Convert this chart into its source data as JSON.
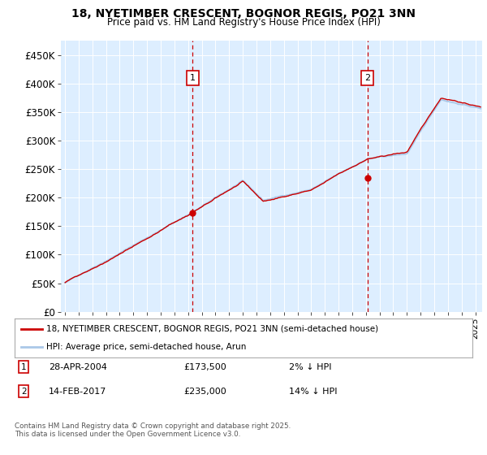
{
  "title_line1": "18, NYETIMBER CRESCENT, BOGNOR REGIS, PO21 3NN",
  "title_line2": "Price paid vs. HM Land Registry's House Price Index (HPI)",
  "ylabel_ticks": [
    "£0",
    "£50K",
    "£100K",
    "£150K",
    "£200K",
    "£250K",
    "£300K",
    "£350K",
    "£400K",
    "£450K"
  ],
  "ytick_values": [
    0,
    50000,
    100000,
    150000,
    200000,
    250000,
    300000,
    350000,
    400000,
    450000
  ],
  "ylim": [
    0,
    475000
  ],
  "xlim_start": 1994.7,
  "xlim_end": 2025.5,
  "hpi_color": "#aac8e8",
  "price_color": "#cc0000",
  "vline_color": "#cc0000",
  "sale1_year": 2004.33,
  "sale1_price": 173500,
  "sale2_year": 2017.12,
  "sale2_price": 235000,
  "legend_line1": "18, NYETIMBER CRESCENT, BOGNOR REGIS, PO21 3NN (semi-detached house)",
  "legend_line2": "HPI: Average price, semi-detached house, Arun",
  "footnote": "Contains HM Land Registry data © Crown copyright and database right 2025.\nThis data is licensed under the Open Government Licence v3.0.",
  "bg_color": "#ddeeff",
  "outer_bg": "#ffffff"
}
